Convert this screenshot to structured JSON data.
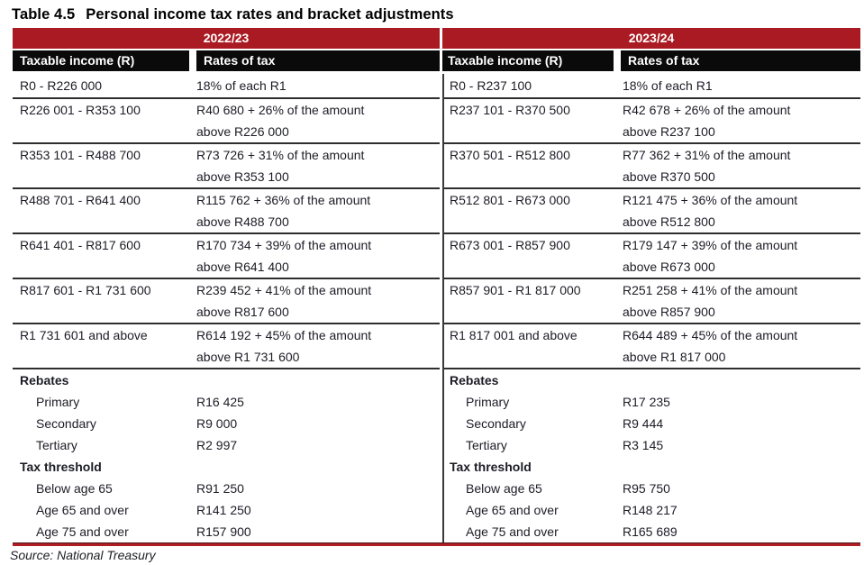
{
  "title": {
    "prefix": "Table 4.5",
    "text": "Personal income tax rates and bracket adjustments"
  },
  "columns": {
    "income": "Taxable income (R)",
    "rates": "Rates of tax"
  },
  "source": "Source: National Treasury",
  "colors": {
    "header_red": "#AA1A22",
    "header_black": "#0A0A0A",
    "bottom_red": "#B01E24"
  },
  "years": [
    {
      "label": "2022/23",
      "brackets": [
        {
          "income": "R0 - R226 000",
          "rate1": "18% of each R1",
          "rate2": ""
        },
        {
          "income": "R226 001 - R353 100",
          "rate1": "R40 680 + 26% of the amount",
          "rate2": "above R226 000"
        },
        {
          "income": "R353 101 - R488 700",
          "rate1": "R73 726 + 31% of the amount",
          "rate2": "above R353 100"
        },
        {
          "income": "R488 701 - R641 400",
          "rate1": "R115 762 + 36% of the amount",
          "rate2": "above R488 700"
        },
        {
          "income": "R641 401 - R817 600",
          "rate1": "R170 734 + 39% of the amount",
          "rate2": "above R641 400"
        },
        {
          "income": "R817 601 - R1 731 600",
          "rate1": "R239 452 + 41% of the amount",
          "rate2": "above R817 600"
        },
        {
          "income": "R1 731 601 and above",
          "rate1": "R614 192 + 45% of the amount",
          "rate2": "above R1 731 600"
        }
      ],
      "rebates_heading": "Rebates",
      "rebates": [
        {
          "label": "Primary",
          "value": "R16 425"
        },
        {
          "label": "Secondary",
          "value": "R9 000"
        },
        {
          "label": "Tertiary",
          "value": "R2 997"
        }
      ],
      "threshold_heading": "Tax threshold",
      "thresholds": [
        {
          "label": "Below age 65",
          "value": "R91 250"
        },
        {
          "label": "Age 65 and over",
          "value": "R141 250"
        },
        {
          "label": "Age 75 and over",
          "value": "R157 900"
        }
      ]
    },
    {
      "label": "2023/24",
      "brackets": [
        {
          "income": "R0 - R237 100",
          "rate1": "18% of each R1",
          "rate2": ""
        },
        {
          "income": "R237 101 - R370 500",
          "rate1": "R42 678 + 26% of the amount",
          "rate2": "above R237 100"
        },
        {
          "income": "R370 501 - R512 800",
          "rate1": "R77 362 + 31% of the amount",
          "rate2": "above R370 500"
        },
        {
          "income": "R512 801 - R673 000",
          "rate1": "R121 475 + 36% of the amount",
          "rate2": "above R512 800"
        },
        {
          "income": "R673 001 - R857 900",
          "rate1": "R179 147 + 39% of the amount",
          "rate2": "above R673 000"
        },
        {
          "income": "R857 901 - R1 817 000",
          "rate1": "R251 258 + 41% of the amount",
          "rate2": "above R857 900"
        },
        {
          "income": "R1 817 001 and above",
          "rate1": "R644 489 + 45% of the amount",
          "rate2": "above R1 817 000"
        }
      ],
      "rebates_heading": "Rebates",
      "rebates": [
        {
          "label": "Primary",
          "value": "R17 235"
        },
        {
          "label": "Secondary",
          "value": "R9 444"
        },
        {
          "label": "Tertiary",
          "value": "R3 145"
        }
      ],
      "threshold_heading": "Tax threshold",
      "thresholds": [
        {
          "label": "Below age 65",
          "value": "R95 750"
        },
        {
          "label": "Age 65 and over",
          "value": "R148 217"
        },
        {
          "label": "Age 75 and over",
          "value": "R165 689"
        }
      ]
    }
  ]
}
